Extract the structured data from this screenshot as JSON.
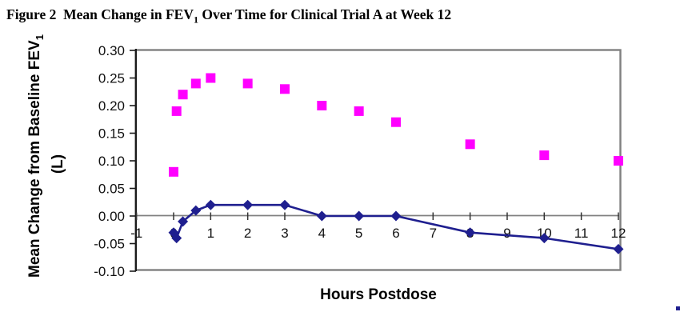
{
  "figure": {
    "title_part1": "Figure 2  Mean Change in FEV",
    "title_sub": "1",
    "title_part2": " Over Time for Clinical Trial A at Week 12"
  },
  "chart_data": {
    "type": "line",
    "markers": true,
    "title": "Figure 2  Mean Change in FEV1 Over Time for Clinical Trial A at Week 12",
    "xlabel": "Hours Postdose",
    "ylabel_part1": "Mean Change from Baseline FEV",
    "ylabel_sub": "1",
    "ylabel_part2": "(L)",
    "xlim": [
      -1,
      12
    ],
    "ylim": [
      -0.1,
      0.3
    ],
    "x_ticks": [
      -1,
      0,
      1,
      2,
      3,
      4,
      5,
      6,
      7,
      8,
      9,
      10,
      11,
      12
    ],
    "y_ticks": [
      0.3,
      0.25,
      0.2,
      0.15,
      0.1,
      0.05,
      0.0,
      -0.05,
      -0.1
    ],
    "grid": "zero-line-only",
    "legend": "none",
    "x": [
      0,
      0.08,
      0.25,
      0.6,
      1,
      2,
      3,
      4,
      5,
      6,
      8,
      10,
      12
    ],
    "series": [
      {
        "name": "magenta-squares-series",
        "marker": "square",
        "color": "#FF00FF",
        "connected": false,
        "values": [
          0.08,
          0.19,
          0.22,
          0.24,
          0.25,
          0.24,
          0.23,
          0.2,
          0.19,
          0.17,
          0.13,
          0.11,
          0.1
        ]
      },
      {
        "name": "navy-diamonds-series",
        "marker": "diamond",
        "color": "#1F1F8F",
        "connected": true,
        "values": [
          -0.03,
          -0.04,
          -0.01,
          0.01,
          0.02,
          0.02,
          0.02,
          0.0,
          0.0,
          0.0,
          -0.03,
          -0.04,
          -0.06
        ]
      }
    ],
    "colors": {
      "frame": "#808080",
      "zero_line": "#808080",
      "axis": "#1a1a1a",
      "tick_text": "#111111",
      "magenta": "#FF00FF",
      "navy": "#1F1F8F"
    }
  }
}
